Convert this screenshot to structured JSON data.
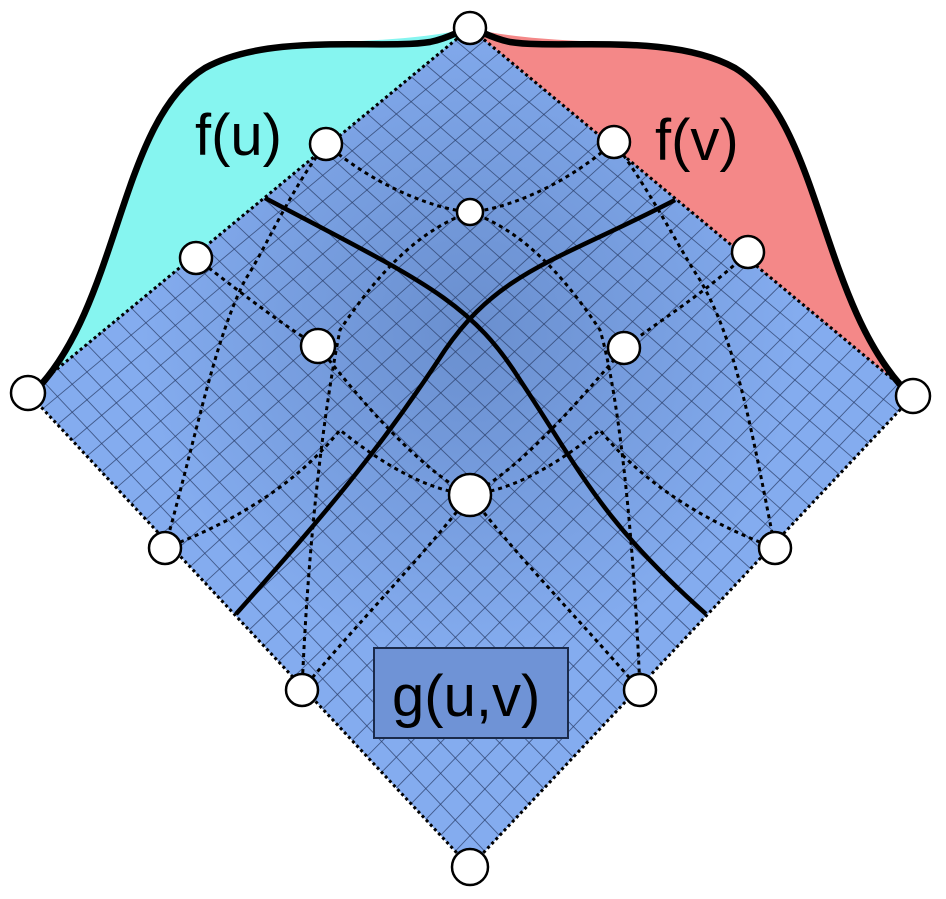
{
  "labels": {
    "fu": "f(u)",
    "fv": "f(v)",
    "guv": "g(u,v)"
  },
  "colors": {
    "f_u_fill": "#86F5F0",
    "f_v_fill": "#F48888",
    "surface_fill": "#84ACEF",
    "surface_shade": "#3E5F9A",
    "grid_line": "#2B3F6A",
    "curve": "#000000",
    "handle_fill": "#FFFFFF",
    "label_box_fill": "#6F93D6",
    "label_box_stroke": "#1A2A4A"
  }
}
